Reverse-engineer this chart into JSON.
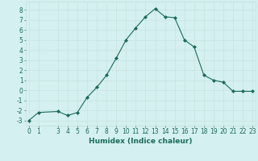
{
  "x": [
    0,
    1,
    3,
    4,
    5,
    6,
    7,
    8,
    9,
    10,
    11,
    12,
    13,
    14,
    15,
    16,
    17,
    18,
    19,
    20,
    21,
    22,
    23
  ],
  "y": [
    -3,
    -2.2,
    -2.1,
    -2.5,
    -2.2,
    -0.7,
    0.3,
    1.5,
    3.2,
    5.0,
    6.2,
    7.3,
    8.1,
    7.3,
    7.2,
    5.0,
    4.3,
    1.5,
    1.0,
    0.8,
    -0.1,
    -0.1,
    -0.1
  ],
  "line_color": "#1a6b5a",
  "marker": "D",
  "marker_size": 2.0,
  "background_color": "#d4f0f0",
  "grid_color_major": "#c8dede",
  "grid_color_minor": "#daeaea",
  "xlabel": "Humidex (Indice chaleur)",
  "ylim": [
    -3.5,
    8.8
  ],
  "xlim": [
    -0.3,
    23.3
  ],
  "yticks": [
    -3,
    -2,
    -1,
    0,
    1,
    2,
    3,
    4,
    5,
    6,
    7,
    8
  ],
  "xticks": [
    0,
    1,
    3,
    4,
    5,
    6,
    7,
    8,
    9,
    10,
    11,
    12,
    13,
    14,
    15,
    16,
    17,
    18,
    19,
    20,
    21,
    22,
    23
  ],
  "tick_color": "#1a6b5a",
  "label_fontsize": 6.5,
  "tick_fontsize": 5.5,
  "linewidth": 0.8
}
